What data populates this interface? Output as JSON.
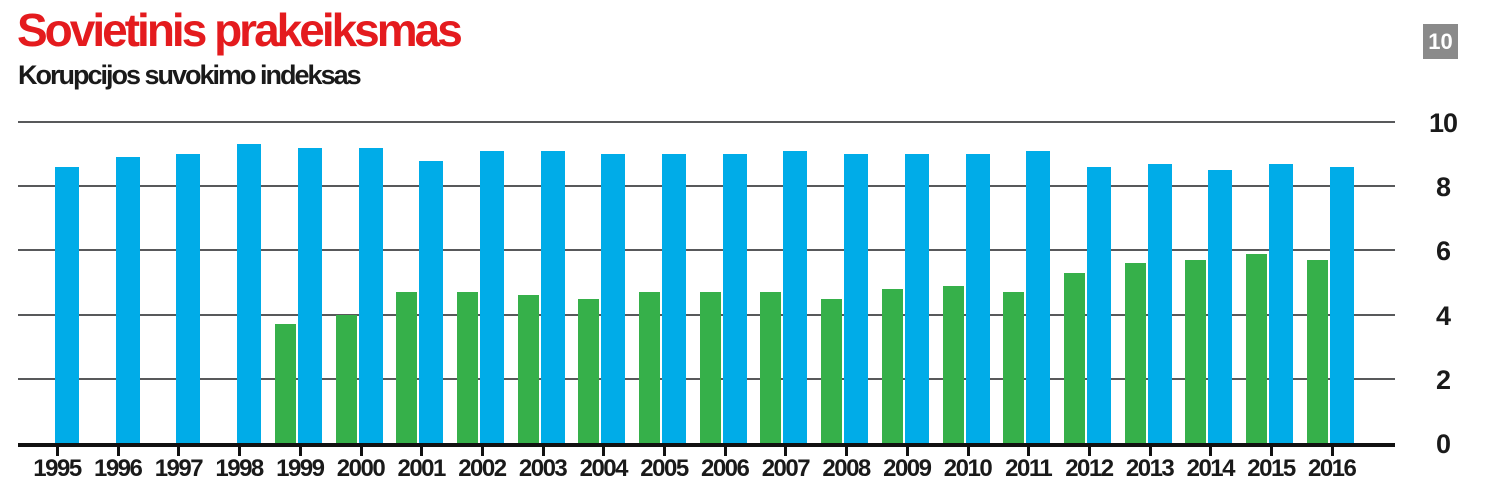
{
  "header": {
    "title": "Sovietinis prakeiksmas",
    "subtitle": "Korupcijos suvokimo indeksas",
    "page_badge": "10"
  },
  "colors": {
    "title_red": "#e41b1e",
    "blue": "#00ace8",
    "green": "#36b04a",
    "gridline": "#58595b",
    "axis": "#111111",
    "badge_bg": "#8a8a8a",
    "badge_text": "#ffffff"
  },
  "chart_data": {
    "type": "bar",
    "title": "Sovietinis prakeiksmas",
    "subtitle": "Korupcijos suvokimo indeksas",
    "categories": [
      "1995",
      "1996",
      "1997",
      "1998",
      "1999",
      "2000",
      "2001",
      "2002",
      "2003",
      "2004",
      "2005",
      "2006",
      "2007",
      "2008",
      "2009",
      "2010",
      "2011",
      "2012",
      "2013",
      "2014",
      "2015",
      "2016"
    ],
    "series": [
      {
        "name": "blue",
        "color": "#00ace8",
        "values": [
          8.6,
          8.9,
          9.0,
          9.3,
          9.2,
          9.2,
          8.8,
          9.1,
          9.1,
          9.0,
          9.0,
          9.0,
          9.1,
          9.0,
          9.0,
          9.0,
          9.1,
          8.6,
          8.7,
          8.5,
          8.7,
          8.6
        ]
      },
      {
        "name": "green",
        "color": "#36b04a",
        "values": [
          null,
          null,
          null,
          null,
          3.7,
          4.0,
          4.7,
          4.7,
          4.6,
          4.5,
          4.7,
          4.7,
          4.7,
          4.5,
          4.8,
          4.9,
          4.7,
          5.3,
          5.6,
          5.7,
          5.9,
          5.7
        ]
      }
    ],
    "xlabel": "",
    "ylabel": "",
    "ylim": [
      0,
      10
    ],
    "yticks": [
      0,
      2,
      4,
      6,
      8,
      10
    ],
    "ytick_side": "right",
    "grid": true,
    "legend": "none"
  }
}
